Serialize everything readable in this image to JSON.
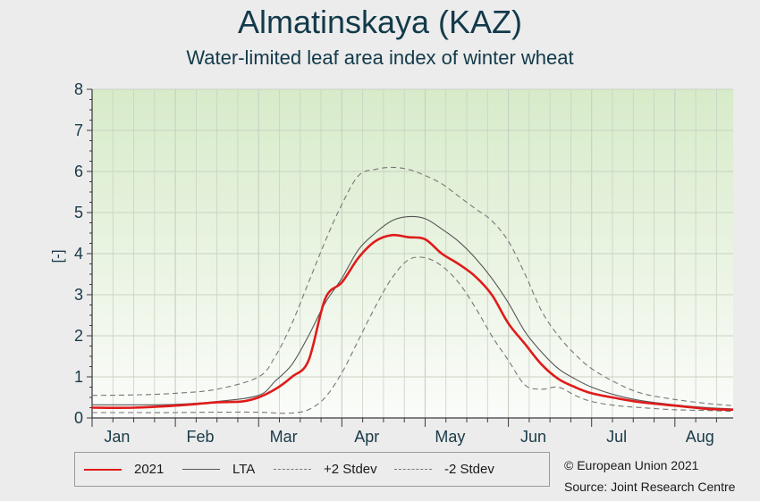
{
  "chart_data": {
    "type": "line",
    "title": "Almatinskaya (KAZ)",
    "subtitle": "Water-limited leaf area index of winter wheat",
    "ylabel": "[-]",
    "xlabel": "",
    "ylim": [
      0,
      8
    ],
    "yticks": [
      0,
      1,
      2,
      3,
      4,
      5,
      6,
      7,
      8
    ],
    "xlim": [
      0,
      7.7
    ],
    "month_labels": [
      "Jan",
      "Feb",
      "Mar",
      "Apr",
      "May",
      "Jun",
      "Jul",
      "Aug"
    ],
    "grid": true,
    "legend_position": "bottom",
    "series": [
      {
        "name": "2021",
        "color": "#e01b1b",
        "style": "solid",
        "x": [
          0,
          0.5,
          1.0,
          1.5,
          1.8,
          2.0,
          2.2,
          2.4,
          2.6,
          2.8,
          3.0,
          3.2,
          3.4,
          3.6,
          3.8,
          4.0,
          4.2,
          4.4,
          4.6,
          4.8,
          5.0,
          5.2,
          5.4,
          5.6,
          5.8,
          6.0,
          6.3,
          6.6,
          7.0,
          7.4,
          7.7
        ],
        "y": [
          0.25,
          0.25,
          0.3,
          0.38,
          0.4,
          0.5,
          0.7,
          1.0,
          1.4,
          2.9,
          3.3,
          3.9,
          4.3,
          4.45,
          4.4,
          4.35,
          4.0,
          3.75,
          3.45,
          3.0,
          2.3,
          1.8,
          1.3,
          0.95,
          0.75,
          0.6,
          0.48,
          0.38,
          0.3,
          0.22,
          0.2
        ]
      },
      {
        "name": "LTA",
        "color": "#555555",
        "style": "solid",
        "x": [
          0,
          0.5,
          1.0,
          1.5,
          2.0,
          2.2,
          2.4,
          2.6,
          2.8,
          3.0,
          3.2,
          3.4,
          3.6,
          3.8,
          4.0,
          4.2,
          4.4,
          4.6,
          4.8,
          5.0,
          5.2,
          5.4,
          5.6,
          5.8,
          6.0,
          6.3,
          6.6,
          7.0,
          7.4,
          7.7
        ],
        "y": [
          0.32,
          0.32,
          0.33,
          0.4,
          0.55,
          0.9,
          1.3,
          2.0,
          2.8,
          3.4,
          4.1,
          4.5,
          4.8,
          4.9,
          4.85,
          4.6,
          4.3,
          3.9,
          3.4,
          2.8,
          2.1,
          1.6,
          1.2,
          0.95,
          0.75,
          0.55,
          0.42,
          0.32,
          0.25,
          0.22
        ]
      },
      {
        "name": "+2 Stdev",
        "color": "#777777",
        "style": "dashed",
        "x": [
          0,
          0.5,
          1.0,
          1.5,
          2.0,
          2.2,
          2.4,
          2.6,
          2.8,
          3.0,
          3.2,
          3.4,
          3.6,
          3.8,
          4.0,
          4.2,
          4.4,
          4.6,
          4.8,
          5.0,
          5.2,
          5.4,
          5.6,
          5.8,
          6.0,
          6.3,
          6.6,
          7.0,
          7.4,
          7.7
        ],
        "y": [
          0.55,
          0.56,
          0.6,
          0.7,
          1.0,
          1.5,
          2.3,
          3.3,
          4.3,
          5.2,
          5.9,
          6.05,
          6.1,
          6.05,
          5.9,
          5.7,
          5.4,
          5.1,
          4.8,
          4.3,
          3.5,
          2.6,
          2.0,
          1.55,
          1.2,
          0.85,
          0.6,
          0.45,
          0.35,
          0.3
        ]
      },
      {
        "name": "-2 Stdev",
        "color": "#777777",
        "style": "dashed",
        "x": [
          0,
          0.5,
          1.0,
          1.5,
          2.0,
          2.2,
          2.4,
          2.6,
          2.8,
          3.0,
          3.2,
          3.4,
          3.6,
          3.8,
          4.0,
          4.2,
          4.4,
          4.6,
          4.8,
          5.0,
          5.2,
          5.4,
          5.6,
          5.8,
          6.0,
          6.3,
          6.6,
          7.0,
          7.4,
          7.7
        ],
        "y": [
          0.13,
          0.13,
          0.13,
          0.14,
          0.14,
          0.12,
          0.12,
          0.2,
          0.5,
          1.1,
          1.9,
          2.7,
          3.4,
          3.85,
          3.9,
          3.7,
          3.3,
          2.7,
          2.0,
          1.4,
          0.8,
          0.7,
          0.75,
          0.55,
          0.4,
          0.3,
          0.25,
          0.2,
          0.18,
          0.16
        ]
      }
    ]
  },
  "legend": {
    "items": [
      "2021",
      "LTA",
      "+2 Stdev",
      "-2 Stdev"
    ]
  },
  "credits": {
    "copyright": "© European Union 2021",
    "source": "Source: Joint Research Centre"
  },
  "colors": {
    "plot_top": "#d7ebc9",
    "plot_bottom": "#fbfcfa",
    "grid": "#c9d2c3",
    "axis": "#3a3a3a"
  }
}
